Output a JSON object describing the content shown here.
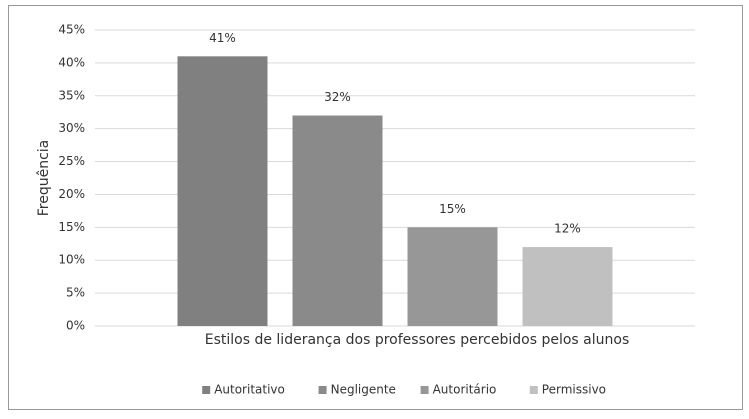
{
  "chart_data": {
    "type": "bar",
    "xlabel": "Estilos de liderança dos professores percebidos pelos alunos",
    "ylabel": "Frequência",
    "categories": [
      null
    ],
    "series": [
      {
        "name": "Autoritativo",
        "color": "#808080",
        "values": [
          41
        ],
        "value_labels": [
          "41%"
        ]
      },
      {
        "name": "Negligente",
        "color": "#8a8a8a",
        "values": [
          32
        ],
        "value_labels": [
          "32%"
        ]
      },
      {
        "name": "Autoritário",
        "color": "#979797",
        "values": [
          15
        ],
        "value_labels": [
          "15%"
        ]
      },
      {
        "name": "Permissivo",
        "color": "#c0c0c0",
        "values": [
          12
        ],
        "value_labels": [
          "12%"
        ]
      }
    ],
    "ylim": [
      0,
      45
    ],
    "yticks": [
      {
        "value": 0,
        "label": "0%"
      },
      {
        "value": 5,
        "label": "5%"
      },
      {
        "value": 10,
        "label": "10%"
      },
      {
        "value": 15,
        "label": "15%"
      },
      {
        "value": 20,
        "label": "20%"
      },
      {
        "value": 25,
        "label": "25%"
      },
      {
        "value": 30,
        "label": "30%"
      },
      {
        "value": 35,
        "label": "35%"
      },
      {
        "value": 40,
        "label": "40%"
      },
      {
        "value": 45,
        "label": "45%"
      }
    ],
    "grid": true,
    "legend": "bottom"
  }
}
